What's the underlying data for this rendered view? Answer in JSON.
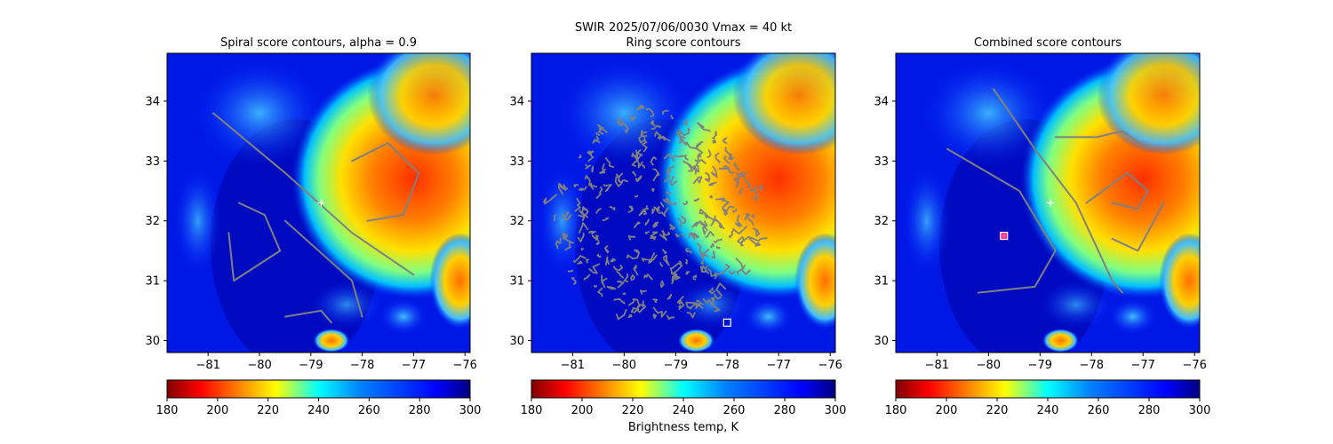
{
  "figure": {
    "suptitle_line1": "SWIR  2025/07/06/0030    Vmax = 40 kt",
    "colorbar_label": "Brightness temp, K"
  },
  "colors": {
    "contour": "#808080",
    "marker": "#ffffff",
    "best_marker_edge": "#ff00ff"
  },
  "chart_data": [
    {
      "type": "heatmap",
      "title": "Spiral score contours, alpha =  0.9",
      "xlim": [
        -81.8,
        -75.9
      ],
      "ylim": [
        29.8,
        34.8
      ],
      "xticks": [
        -81,
        -80,
        -79,
        -78,
        -77,
        -76
      ],
      "yticks": [
        30,
        31,
        32,
        33,
        34
      ],
      "colorscale": "jet_r",
      "colorbar": {
        "min": 180,
        "max": 300,
        "ticks": [
          180,
          200,
          220,
          240,
          260,
          280,
          300
        ]
      },
      "center_marker": {
        "symbol": "+",
        "lon": -78.8,
        "lat": 32.3
      },
      "contours": [
        [
          [
            -79.5,
            32.0
          ],
          [
            -78.2,
            31.0
          ],
          [
            -78.0,
            30.4
          ]
        ],
        [
          [
            -80.9,
            33.8
          ],
          [
            -79.5,
            32.8
          ],
          [
            -78.2,
            31.8
          ],
          [
            -77.0,
            31.1
          ]
        ],
        [
          [
            -78.2,
            33.0
          ],
          [
            -77.5,
            33.3
          ],
          [
            -76.9,
            32.8
          ],
          [
            -77.2,
            32.1
          ],
          [
            -77.9,
            32.0
          ]
        ],
        [
          [
            -80.4,
            32.3
          ],
          [
            -79.9,
            32.1
          ],
          [
            -79.6,
            31.5
          ],
          [
            -80.5,
            31.0
          ],
          [
            -80.6,
            31.8
          ]
        ],
        [
          [
            -79.5,
            30.4
          ],
          [
            -78.8,
            30.5
          ],
          [
            -78.6,
            30.3
          ]
        ]
      ]
    },
    {
      "type": "heatmap",
      "title": "Ring score contours",
      "xlim": [
        -81.8,
        -75.9
      ],
      "ylim": [
        29.8,
        34.8
      ],
      "xticks": [
        -81,
        -80,
        -79,
        -78,
        -77,
        -76
      ],
      "yticks": [
        30,
        31,
        32,
        33,
        34
      ],
      "colorscale": "jet_r",
      "colorbar": {
        "min": 180,
        "max": 300,
        "ticks": [
          180,
          200,
          220,
          240,
          260,
          280,
          300
        ]
      },
      "square_marker": {
        "lon": -78.0,
        "lat": 30.3
      },
      "contour_region": {
        "lon_min": -81.4,
        "lon_max": -77.4,
        "lat_min": 30.3,
        "lat_max": 33.9
      }
    },
    {
      "type": "heatmap",
      "title": "Combined score contours",
      "xlim": [
        -81.8,
        -75.9
      ],
      "ylim": [
        29.8,
        34.8
      ],
      "xticks": [
        -81,
        -80,
        -79,
        -78,
        -77,
        -76
      ],
      "yticks": [
        30,
        31,
        32,
        33,
        34
      ],
      "colorscale": "jet_r",
      "colorbar": {
        "min": 180,
        "max": 300,
        "ticks": [
          180,
          200,
          220,
          240,
          260,
          280,
          300
        ]
      },
      "center_marker": {
        "symbol": "+",
        "lon": -78.8,
        "lat": 32.3
      },
      "square_marker": {
        "lon": -79.7,
        "lat": 31.75
      },
      "contours": [
        [
          [
            -79.9,
            34.2
          ],
          [
            -79.1,
            33.2
          ],
          [
            -78.3,
            32.3
          ],
          [
            -77.6,
            31.0
          ],
          [
            -77.4,
            30.8
          ]
        ],
        [
          [
            -78.7,
            33.4
          ],
          [
            -77.9,
            33.4
          ],
          [
            -77.4,
            33.5
          ],
          [
            -76.9,
            33.2
          ]
        ],
        [
          [
            -78.1,
            32.3
          ],
          [
            -77.3,
            32.8
          ],
          [
            -76.9,
            32.5
          ],
          [
            -77.1,
            32.2
          ],
          [
            -77.6,
            32.3
          ]
        ],
        [
          [
            -80.8,
            33.2
          ],
          [
            -79.4,
            32.5
          ],
          [
            -78.7,
            31.5
          ],
          [
            -79.1,
            30.9
          ],
          [
            -80.2,
            30.8
          ]
        ],
        [
          [
            -77.6,
            31.7
          ],
          [
            -77.1,
            31.5
          ],
          [
            -76.6,
            32.3
          ]
        ]
      ]
    }
  ]
}
